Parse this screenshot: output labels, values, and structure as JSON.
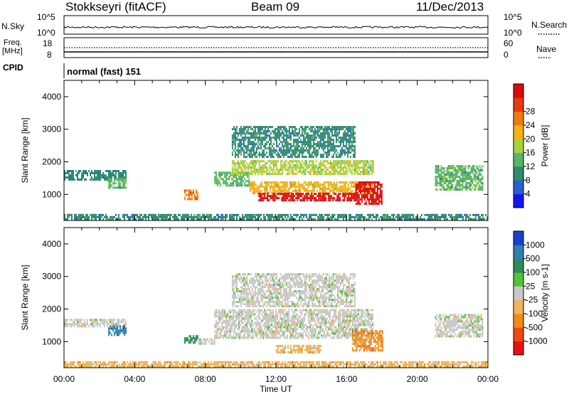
{
  "header": {
    "station": "Stokkseyri (fitACF)",
    "beam": "Beam 09",
    "date": "11/Dec/2013"
  },
  "panels": {
    "nsky": {
      "label": "N.Sky",
      "tick_top": "10^5",
      "tick_bottom": "10^0",
      "right_tick_top": "10^5",
      "right_tick_bottom": "10^0",
      "right_label": "N.Search"
    },
    "freq": {
      "label_line1": "Freq.",
      "label_line2": "[MHz]",
      "tick_top": "18",
      "tick_bottom": "8",
      "right_tick_top": "60",
      "right_tick_bottom": "0",
      "right_label": "Nave"
    },
    "cpid": {
      "label": "CPID",
      "text": "normal (fast) 151"
    }
  },
  "colorbars": {
    "power": {
      "label": "Power [dB]",
      "ticks": [
        "4",
        "8",
        "12",
        "16",
        "20",
        "24",
        "28"
      ],
      "colors": [
        "#1414f0",
        "#2a5fcf",
        "#2f8a6e",
        "#58b46a",
        "#a8d23c",
        "#f2b21a",
        "#f07a10",
        "#e63a12",
        "#dd0a0a"
      ]
    },
    "velocity": {
      "label": "Velocity [m s-1]",
      "ticks": [
        "1000",
        "500",
        "100",
        "25",
        "-25",
        "-100",
        "-500",
        "-1000"
      ],
      "colors": [
        "#1c3fcc",
        "#2f7fb0",
        "#2e8a5c",
        "#52c23a",
        "#c8c8c8",
        "#f0b45a",
        "#f08a18",
        "#ee4a10",
        "#e81010"
      ]
    }
  },
  "chart_data": [
    {
      "type": "heatmap",
      "title": "Power",
      "xlabel": "Time UT",
      "ylabel": "Slant Range [km]",
      "x_ticks": [
        "00:00",
        "04:00",
        "08:00",
        "12:00",
        "16:00",
        "20:00",
        "00:00"
      ],
      "y_ticks": [
        "1000",
        "2000",
        "3000",
        "4000"
      ],
      "ylim": [
        200,
        4500
      ],
      "zlabel": "Power [dB]",
      "regions": [
        {
          "t0": 0.0,
          "t1": 3.5,
          "r0": 1450,
          "r1": 1750,
          "value": 8
        },
        {
          "t0": 2.5,
          "t1": 3.5,
          "r0": 1200,
          "r1": 1500,
          "value": 12
        },
        {
          "t0": 6.8,
          "t1": 7.6,
          "r0": 850,
          "r1": 1150,
          "value": 24
        },
        {
          "t0": 8.5,
          "t1": 10.5,
          "r0": 1300,
          "r1": 1700,
          "value": 12
        },
        {
          "t0": 9.5,
          "t1": 17.5,
          "r0": 1650,
          "r1": 2050,
          "value": 16
        },
        {
          "t0": 10.5,
          "t1": 17.5,
          "r0": 1050,
          "r1": 1400,
          "value": 20
        },
        {
          "t0": 11.0,
          "t1": 16.5,
          "r0": 800,
          "r1": 1050,
          "value": 28
        },
        {
          "t0": 16.5,
          "t1": 18.0,
          "r0": 700,
          "r1": 1400,
          "value": 28
        },
        {
          "t0": 9.5,
          "t1": 16.5,
          "r0": 2150,
          "r1": 3100,
          "value": 8
        },
        {
          "t0": 21.0,
          "t1": 23.7,
          "r0": 1150,
          "r1": 1900,
          "value": 12
        },
        {
          "t0": 0.0,
          "t1": 24.0,
          "r0": 250,
          "r1": 400,
          "value": 8
        }
      ]
    },
    {
      "type": "heatmap",
      "title": "Velocity",
      "xlabel": "Time UT",
      "ylabel": "Slant Range [km]",
      "x_ticks": [
        "00:00",
        "04:00",
        "08:00",
        "12:00",
        "16:00",
        "20:00",
        "00:00"
      ],
      "y_ticks": [
        "1000",
        "2000",
        "3000",
        "4000"
      ],
      "ylim": [
        200,
        4500
      ],
      "zlabel": "Velocity [m s-1]",
      "regions": [
        {
          "t0": 0.0,
          "t1": 3.5,
          "r0": 1450,
          "r1": 1700,
          "value": 0
        },
        {
          "t0": 2.5,
          "t1": 3.5,
          "r0": 1200,
          "r1": 1500,
          "value": 500
        },
        {
          "t0": 6.8,
          "t1": 7.6,
          "r0": 1000,
          "r1": 1200,
          "value": 100
        },
        {
          "t0": 7.6,
          "t1": 8.5,
          "r0": 950,
          "r1": 1100,
          "value": 0
        },
        {
          "t0": 8.5,
          "t1": 17.5,
          "r0": 1100,
          "r1": 2000,
          "value": 0
        },
        {
          "t0": 9.5,
          "t1": 16.5,
          "r0": 2100,
          "r1": 3100,
          "value": 0
        },
        {
          "t0": 16.3,
          "t1": 18.0,
          "r0": 700,
          "r1": 1350,
          "value": -500
        },
        {
          "t0": 12.0,
          "t1": 14.5,
          "r0": 700,
          "r1": 900,
          "value": -100
        },
        {
          "t0": 21.0,
          "t1": 23.7,
          "r0": 1150,
          "r1": 1850,
          "value": 0
        },
        {
          "t0": 0.0,
          "t1": 24.0,
          "r0": 250,
          "r1": 400,
          "value": -100
        }
      ]
    }
  ]
}
